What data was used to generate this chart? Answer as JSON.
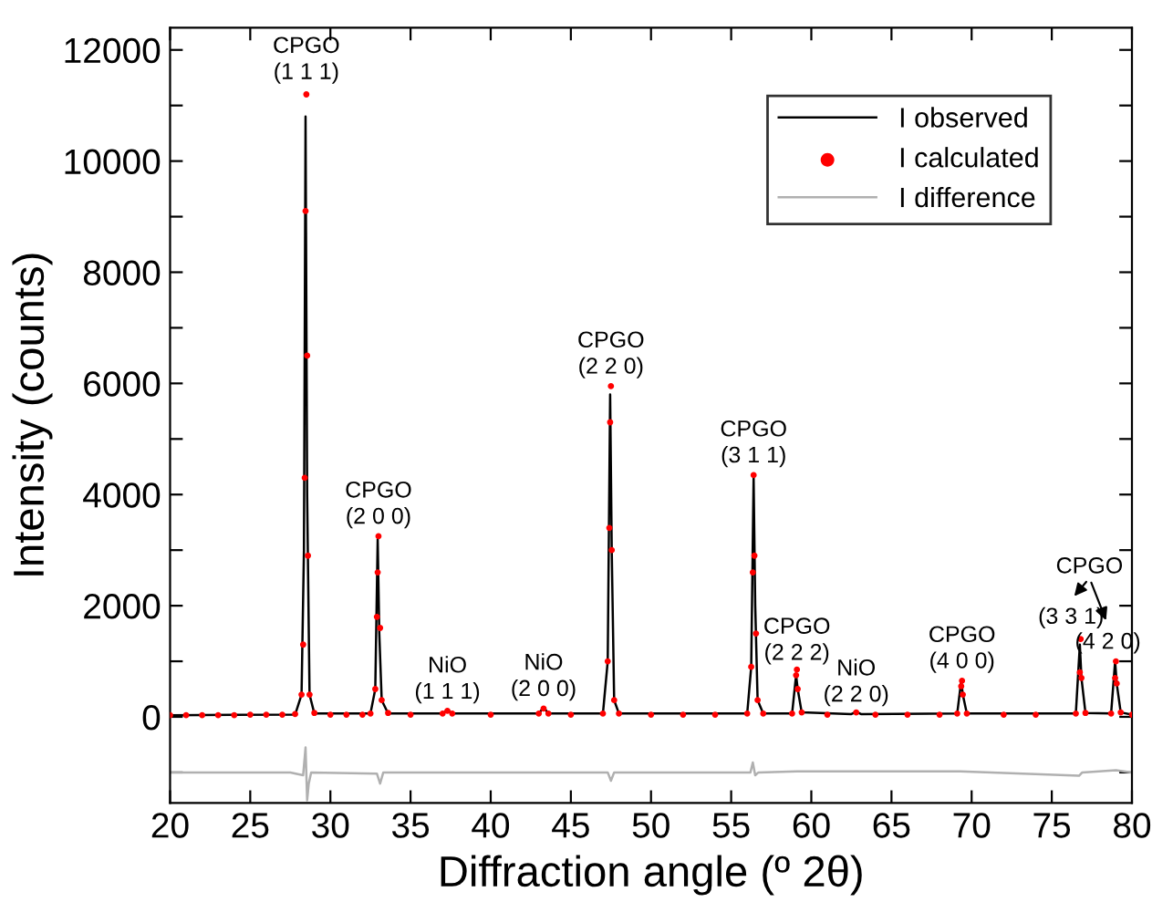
{
  "chart_data": {
    "type": "line",
    "xlabel": "Diffraction angle (º 2θ)",
    "ylabel": "Intensity (counts)",
    "xlim": [
      20,
      80
    ],
    "xticks": [
      20,
      25,
      30,
      35,
      40,
      45,
      50,
      55,
      60,
      65,
      70,
      75,
      80
    ],
    "ylim": [
      -1550,
      12400
    ],
    "yticks": [
      {
        "value": -1000,
        "label": null
      },
      0,
      {
        "value": 1000,
        "label": null
      },
      2000,
      {
        "value": 3000,
        "label": null
      },
      4000,
      {
        "value": 5000,
        "label": null
      },
      6000,
      {
        "value": 7000,
        "label": null
      },
      8000,
      {
        "value": 9000,
        "label": null
      },
      10000,
      {
        "value": 11000,
        "label": null
      },
      12000
    ],
    "grid": false,
    "legend": "top right",
    "series": [
      {
        "name": "I observed",
        "color": "#000000",
        "marker": "none",
        "x": [
          20,
          27.8,
          28.2,
          28.35,
          28.45,
          28.55,
          28.7,
          29.0,
          32.5,
          32.8,
          32.95,
          33.05,
          33.2,
          33.6,
          37.0,
          37.3,
          37.6,
          43.0,
          43.3,
          43.6,
          47.0,
          47.3,
          47.45,
          47.55,
          47.7,
          48.0,
          56.0,
          56.25,
          56.4,
          56.5,
          56.65,
          57.0,
          58.8,
          59.05,
          59.15,
          59.4,
          62.5,
          62.8,
          63.1,
          69.1,
          69.35,
          69.45,
          69.7,
          76.5,
          76.75,
          76.85,
          77.1,
          78.7,
          78.95,
          79.05,
          79.3,
          80
        ],
        "values": [
          30,
          40,
          400,
          3000,
          10800,
          4000,
          400,
          60,
          60,
          500,
          3200,
          1500,
          300,
          60,
          60,
          120,
          60,
          60,
          170,
          60,
          60,
          1000,
          5800,
          3000,
          300,
          60,
          60,
          900,
          4300,
          2000,
          300,
          60,
          60,
          750,
          500,
          80,
          50,
          90,
          50,
          60,
          650,
          400,
          60,
          60,
          1300,
          700,
          70,
          60,
          1000,
          600,
          80,
          40
        ]
      },
      {
        "name": "I calculated",
        "color": "#ff0000",
        "type": "scatter",
        "marker": "circle",
        "x": [
          20,
          21,
          22,
          23,
          24,
          25,
          26,
          27,
          27.8,
          28.2,
          28.3,
          28.4,
          28.45,
          28.5,
          28.55,
          28.6,
          28.7,
          29.0,
          30,
          31,
          32,
          32.5,
          32.8,
          32.9,
          32.95,
          33.0,
          33.1,
          33.2,
          33.6,
          35,
          37.0,
          37.3,
          37.6,
          40,
          43.0,
          43.3,
          43.6,
          45,
          47.0,
          47.3,
          47.4,
          47.45,
          47.5,
          47.55,
          47.7,
          48.0,
          50,
          52,
          54,
          56.0,
          56.25,
          56.35,
          56.4,
          56.45,
          56.55,
          56.65,
          57.0,
          58.8,
          59.05,
          59.1,
          59.15,
          59.4,
          61,
          62.8,
          64,
          66,
          68,
          69.1,
          69.35,
          69.4,
          69.45,
          69.7,
          72,
          74,
          76.5,
          76.75,
          76.8,
          76.85,
          77.1,
          78.7,
          78.95,
          79.0,
          79.05,
          79.3,
          80
        ],
        "values": [
          30,
          30,
          30,
          30,
          30,
          40,
          40,
          40,
          50,
          400,
          1300,
          4300,
          9100,
          11200,
          6500,
          2900,
          400,
          70,
          40,
          40,
          40,
          60,
          500,
          1800,
          2600,
          3250,
          1600,
          300,
          70,
          40,
          60,
          110,
          60,
          40,
          60,
          150,
          60,
          40,
          60,
          1000,
          3400,
          5300,
          5950,
          3000,
          300,
          60,
          40,
          40,
          40,
          60,
          900,
          2600,
          4350,
          2900,
          1500,
          300,
          60,
          60,
          750,
          850,
          500,
          80,
          40,
          80,
          40,
          40,
          40,
          60,
          550,
          650,
          400,
          60,
          40,
          40,
          60,
          800,
          1400,
          700,
          70,
          60,
          700,
          1000,
          600,
          80,
          40
        ]
      },
      {
        "name": "I difference",
        "color": "#b0b0b0",
        "marker": "none",
        "x": [
          20,
          27.5,
          28.3,
          28.45,
          28.55,
          28.65,
          28.8,
          32.9,
          33.1,
          33.3,
          47.3,
          47.5,
          47.7,
          56.2,
          56.35,
          56.5,
          56.7,
          59.1,
          69.3,
          76.7,
          76.9,
          79.0,
          80
        ],
        "values": [
          -1000,
          -1000,
          -1050,
          -550,
          -1500,
          -1200,
          -1000,
          -1020,
          -1200,
          -1000,
          -1000,
          -1150,
          -1000,
          -1000,
          -820,
          -1050,
          -1000,
          -980,
          -980,
          -1060,
          -1000,
          -960,
          -1000
        ]
      }
    ],
    "annotations": [
      {
        "text": "CPGO\n(1 1 1)",
        "x": 28.5,
        "y": 11300
      },
      {
        "text": "CPGO\n(2 0 0)",
        "x": 33.0,
        "y": 3300
      },
      {
        "text": "NiO\n(1 1 1)",
        "x": 37.3,
        "y": 150
      },
      {
        "text": "NiO\n(2 0 0)",
        "x": 43.3,
        "y": 200
      },
      {
        "text": "CPGO\n(2 2 0)",
        "x": 47.5,
        "y": 6000
      },
      {
        "text": "CPGO\n(3 1 1)",
        "x": 56.4,
        "y": 4400
      },
      {
        "text": "CPGO\n(2 2 2)",
        "x": 59.1,
        "y": 850
      },
      {
        "text": "NiO\n(2 2 0)",
        "x": 62.8,
        "y": 100
      },
      {
        "text": "CPGO\n(4 0 0)",
        "x": 69.4,
        "y": 700
      },
      "CPGO",
      {
        "text": "(3 3 1)",
        "x": 76.2,
        "y": 1500
      },
      {
        "text": "(4 2 0)",
        "x": 78.5,
        "y": 1050
      }
    ]
  }
}
